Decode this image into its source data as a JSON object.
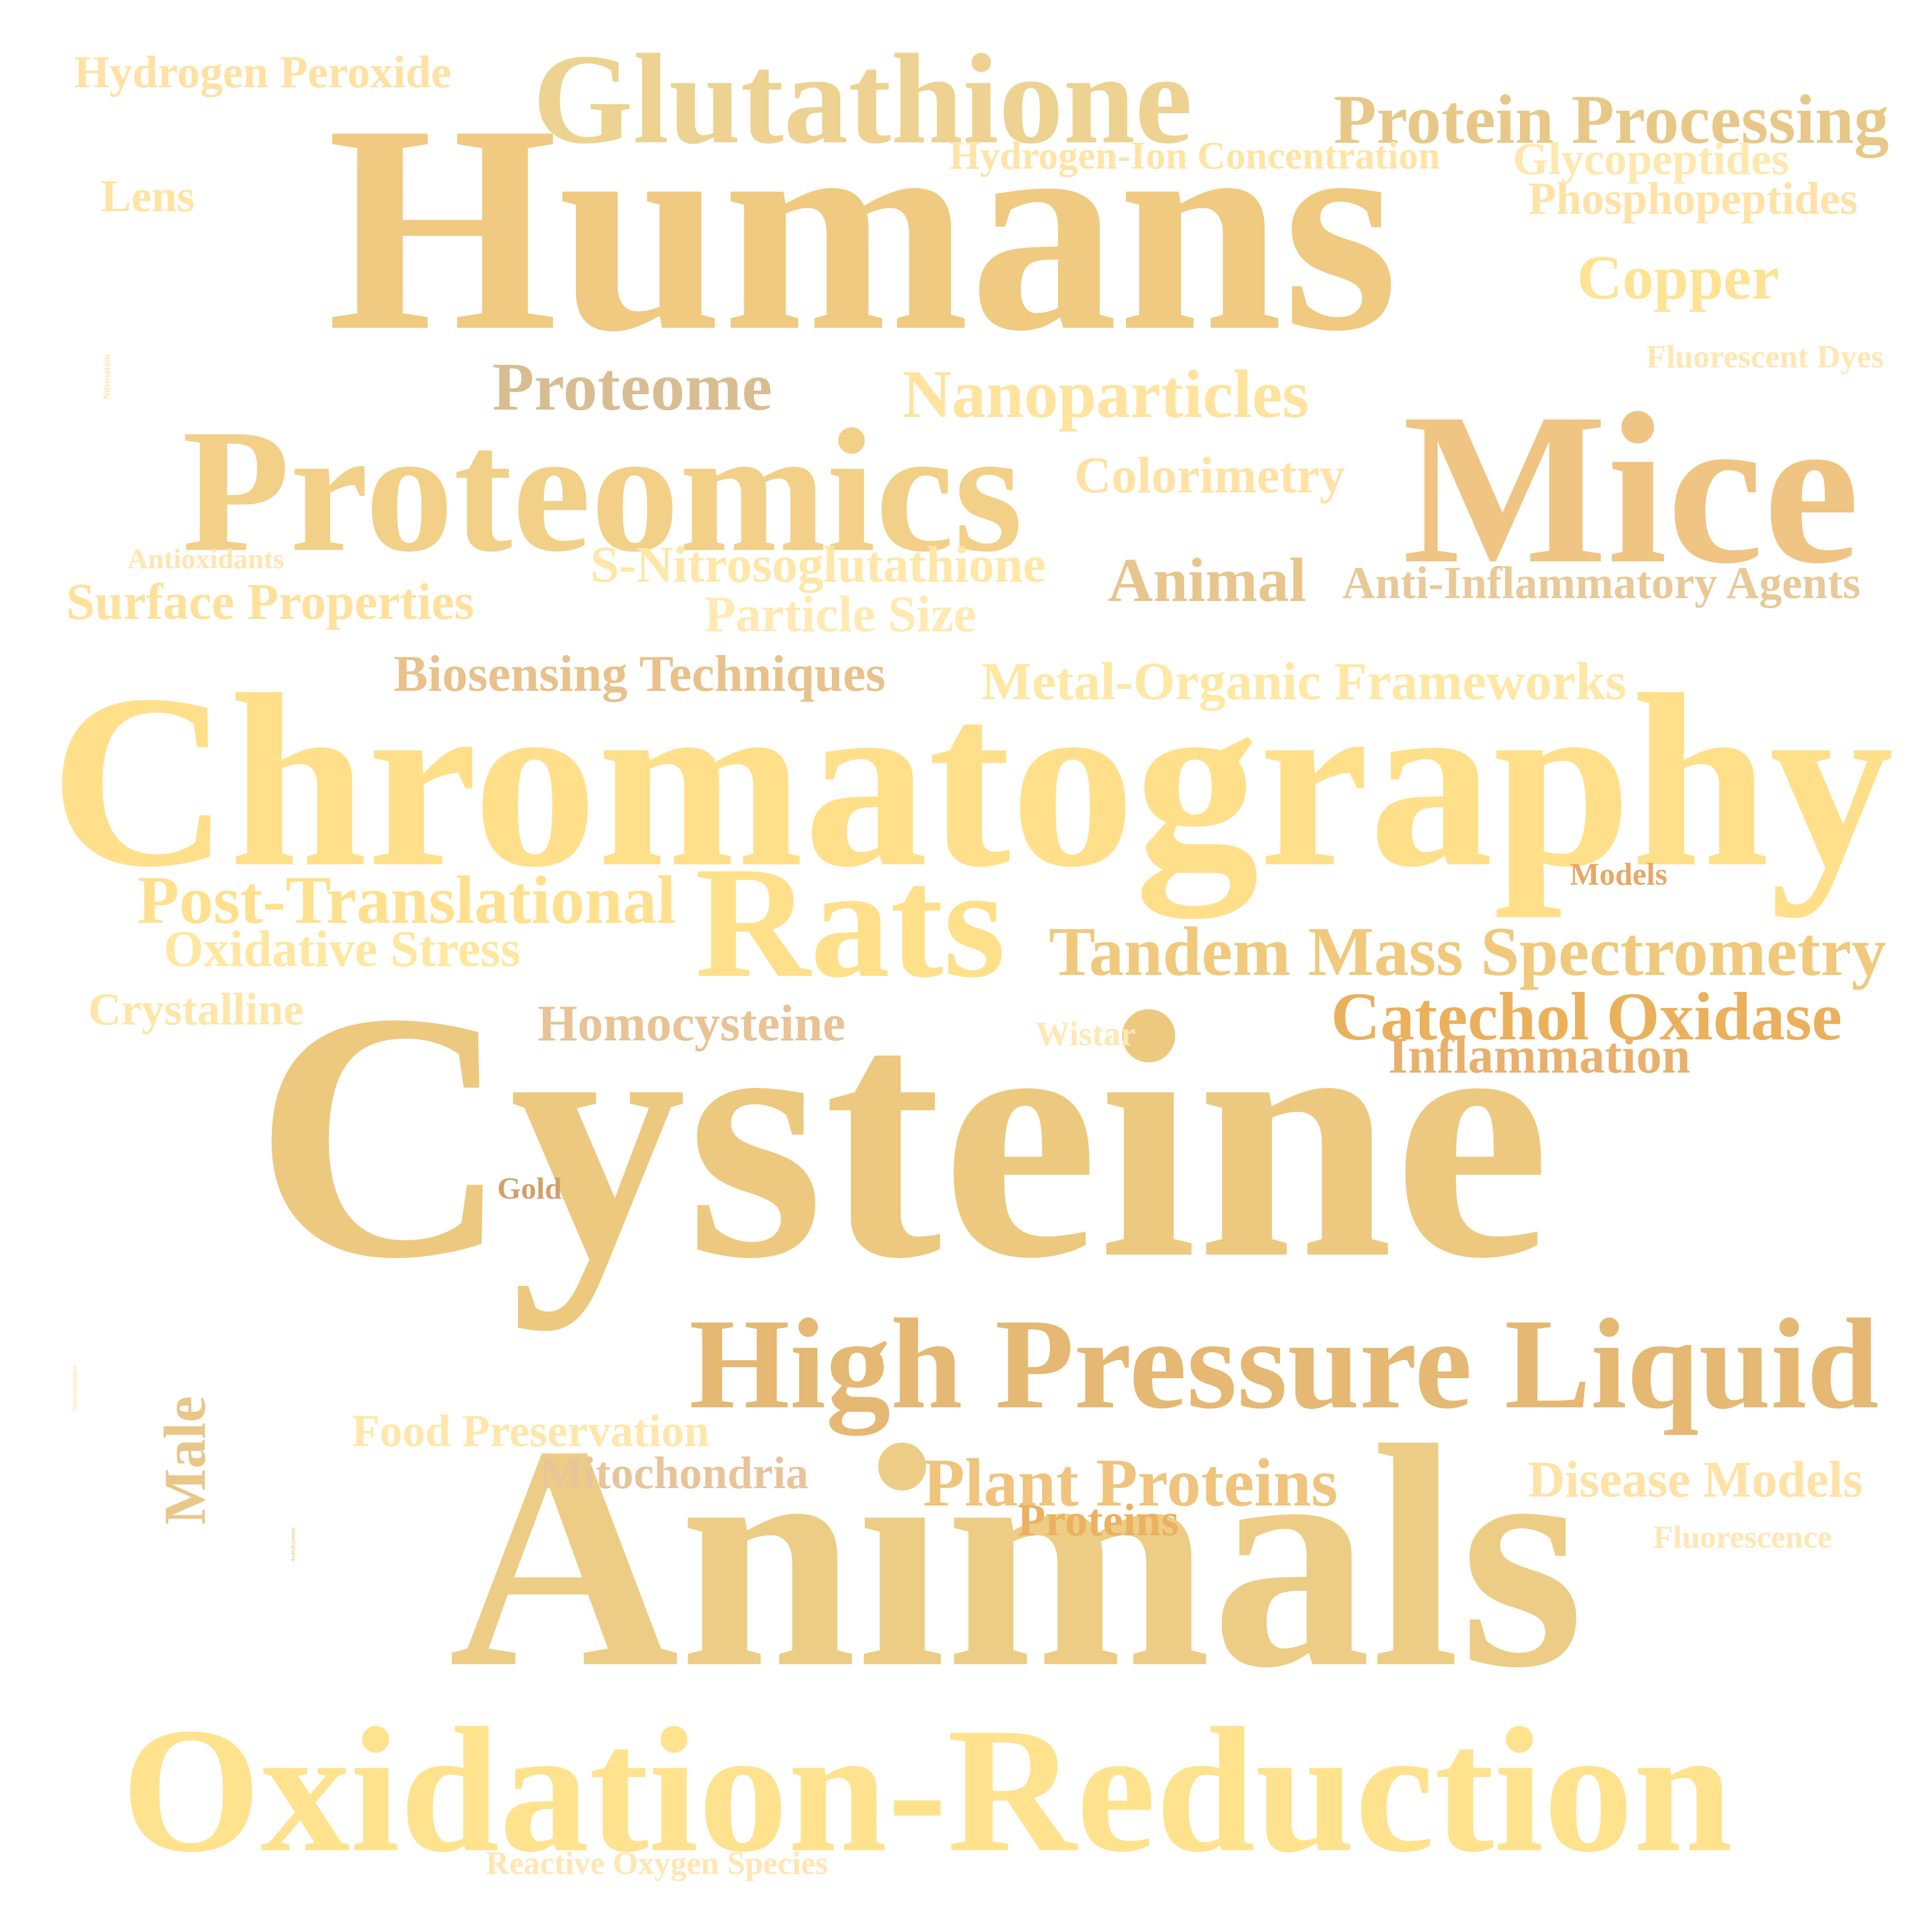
{
  "words": [
    {
      "id": "humans",
      "text": "Humans",
      "color": "#EFCA80",
      "rotate": 0
    },
    {
      "id": "cysteine",
      "text": "Cysteine",
      "color": "#EDC97F",
      "rotate": 0
    },
    {
      "id": "chromatography",
      "text": "Chromatography",
      "color": "#FFDF8A",
      "rotate": 0
    },
    {
      "id": "animals",
      "text": "Animals",
      "color": "#EDCD85",
      "rotate": 0
    },
    {
      "id": "mice",
      "text": "Mice",
      "color": "#F0C483",
      "rotate": 0
    },
    {
      "id": "proteomics",
      "text": "Proteomics",
      "color": "#F2D088",
      "rotate": 0
    },
    {
      "id": "oxidation-reduction",
      "text": "Oxidation-Reduction",
      "color": "#FFE28E",
      "rotate": 0
    },
    {
      "id": "high-pressure-liquid",
      "text": "High Pressure Liquid",
      "color": "#E5B873",
      "rotate": 0
    },
    {
      "id": "glutathione",
      "text": "Glutathione",
      "color": "#EDD291",
      "rotate": 0
    },
    {
      "id": "rats",
      "text": "Rats",
      "color": "#FFE08A",
      "rotate": 0
    },
    {
      "id": "male",
      "text": "Male",
      "color": "#E9C789",
      "rotate": -90
    },
    {
      "id": "tandem-mass-spectrometry",
      "text": "Tandem Mass Spectrometry",
      "color": "#F0C97C",
      "rotate": 0
    },
    {
      "id": "protein-processing",
      "text": "Protein Processing",
      "color": "#E8C888",
      "rotate": 0
    },
    {
      "id": "catechol-oxidase",
      "text": "Catechol Oxidase",
      "color": "#EBB05C",
      "rotate": 0
    },
    {
      "id": "nanoparticles",
      "text": "Nanoparticles",
      "color": "#FFE39E",
      "rotate": 0
    },
    {
      "id": "post-translational",
      "text": "Post-Translational",
      "color": "#FFE08E",
      "rotate": 0
    },
    {
      "id": "proteome",
      "text": "Proteome",
      "color": "#D9BD92",
      "rotate": 0
    },
    {
      "id": "animal",
      "text": "Animal",
      "color": "#E8C58C",
      "rotate": 0
    },
    {
      "id": "plant-proteins",
      "text": "Plant Proteins",
      "color": "#F0C47C",
      "rotate": 0
    },
    {
      "id": "metal-organic-frameworks",
      "text": "Metal-Organic Frameworks",
      "color": "#FFE7A4",
      "rotate": 0
    },
    {
      "id": "copper",
      "text": "Copper",
      "color": "#FFE394",
      "rotate": 0
    },
    {
      "id": "s-nitrosoglutathione",
      "text": "S-Nitrosoglutathione",
      "color": "#FFE7A8",
      "rotate": 0
    },
    {
      "id": "oxidative-stress",
      "text": "Oxidative Stress",
      "color": "#FFE7A0",
      "rotate": 0
    },
    {
      "id": "biosensing-techniques",
      "text": "Biosensing Techniques",
      "color": "#E8C18B",
      "rotate": 0
    },
    {
      "id": "surface-properties",
      "text": "Surface Properties",
      "color": "#FFE19C",
      "rotate": 0
    },
    {
      "id": "anti-inflammatory-agents",
      "text": "Anti-Inflammatory Agents",
      "color": "#E8C997",
      "rotate": 0
    },
    {
      "id": "disease-models",
      "text": "Disease Models",
      "color": "#FFE2A5",
      "rotate": 0
    },
    {
      "id": "homocysteine",
      "text": "Homocysteine",
      "color": "#E8C395",
      "rotate": 0
    },
    {
      "id": "phosphopeptides",
      "text": "Phosphopeptides",
      "color": "#FFE2A6",
      "rotate": 0
    },
    {
      "id": "particle-size",
      "text": "Particle Size",
      "color": "#FFEAB4",
      "rotate": 0
    },
    {
      "id": "hydrogen-peroxide",
      "text": "Hydrogen Peroxide",
      "color": "#FFE1A3",
      "rotate": 0
    },
    {
      "id": "inflammation",
      "text": "Inflammation",
      "color": "#E9B06D",
      "rotate": 0
    },
    {
      "id": "colorimetry",
      "text": "Colorimetry",
      "color": "#FFE2A4",
      "rotate": 0
    },
    {
      "id": "food-preservation",
      "text": "Food Preservation",
      "color": "#FFE7AC",
      "rotate": 0
    },
    {
      "id": "glycopeptides",
      "text": "Glycopeptides",
      "color": "#FFE8AE",
      "rotate": 0
    },
    {
      "id": "mitochondria",
      "text": "Mitochondria",
      "color": "#E8C49A",
      "rotate": 0
    },
    {
      "id": "crystalline",
      "text": "Crystalline",
      "color": "#FFE6A6",
      "rotate": 0
    },
    {
      "id": "hydrogen-ion-concentration",
      "text": "Hydrogen-Ion Concentration",
      "color": "#FFE4A5",
      "rotate": 0
    },
    {
      "id": "nanocomposites",
      "text": "Nanocomposites",
      "color": "#FFE4A6",
      "rotate": -90
    },
    {
      "id": "acetylcysteine",
      "text": "Acetylcysteine",
      "color": "#F0C988",
      "rotate": -90
    },
    {
      "id": "proteins",
      "text": "Proteins",
      "color": "#ECB061",
      "rotate": 0
    },
    {
      "id": "nitrosation",
      "text": "Nitrosation",
      "color": "#FFE3A2",
      "rotate": -90
    },
    {
      "id": "lens",
      "text": "Lens",
      "color": "#FFE4A4",
      "rotate": 0
    },
    {
      "id": "wistar",
      "text": "Wistar",
      "color": "#FFE8B5",
      "rotate": 0
    },
    {
      "id": "fluorescent-dyes",
      "text": "Fluorescent Dyes",
      "color": "#FFE7B4",
      "rotate": 0
    },
    {
      "id": "fluorescence",
      "text": "Fluorescence",
      "color": "#FFE7B4",
      "rotate": 0
    },
    {
      "id": "reactive-oxygen-species",
      "text": "Reactive Oxygen Species",
      "color": "#FFE6B3",
      "rotate": 0
    },
    {
      "id": "antioxidants",
      "text": "Antioxidants",
      "color": "#FFE6B2",
      "rotate": 0
    },
    {
      "id": "models",
      "text": "Models",
      "color": "#E8A865",
      "rotate": 0
    },
    {
      "id": "gold",
      "text": "Gold",
      "color": "#D1A06A",
      "rotate": 0
    }
  ]
}
